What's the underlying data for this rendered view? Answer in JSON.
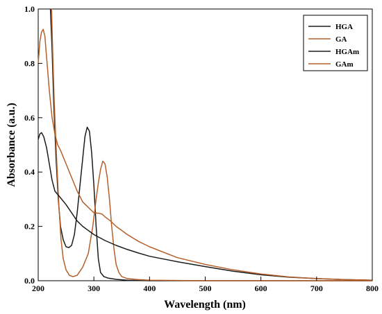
{
  "chart_data": {
    "type": "line",
    "xlabel": "Wavelength (nm)",
    "ylabel": "Absorbance (a.u.)",
    "xlim": [
      200,
      800
    ],
    "ylim": [
      0,
      1.0
    ],
    "grid": false,
    "legend_position": "top-right",
    "x_ticks": [
      {
        "value": 200,
        "label": "200"
      },
      {
        "value": 300,
        "label": "300"
      },
      {
        "value": 400,
        "label": "400"
      },
      {
        "value": 500,
        "label": "500"
      },
      {
        "value": 600,
        "label": "600"
      },
      {
        "value": 700,
        "label": "700"
      },
      {
        "value": 800,
        "label": "800"
      }
    ],
    "y_ticks": [
      {
        "value": 0.0,
        "label": "0.0"
      },
      {
        "value": 0.2,
        "label": "0.2"
      },
      {
        "value": 0.4,
        "label": "0.4"
      },
      {
        "value": 0.6,
        "label": "0.6"
      },
      {
        "value": 0.8,
        "label": "0.8"
      },
      {
        "value": 1.0,
        "label": "1.0"
      }
    ],
    "series": [
      {
        "name": "HGA",
        "color": "#1a1a1a",
        "points": [
          [
            222,
            1.0
          ],
          [
            225,
            0.85
          ],
          [
            228,
            0.65
          ],
          [
            232,
            0.45
          ],
          [
            236,
            0.3
          ],
          [
            240,
            0.2
          ],
          [
            245,
            0.15
          ],
          [
            250,
            0.125
          ],
          [
            255,
            0.122
          ],
          [
            260,
            0.13
          ],
          [
            265,
            0.17
          ],
          [
            270,
            0.25
          ],
          [
            275,
            0.35
          ],
          [
            280,
            0.45
          ],
          [
            284,
            0.53
          ],
          [
            288,
            0.565
          ],
          [
            292,
            0.55
          ],
          [
            296,
            0.47
          ],
          [
            300,
            0.35
          ],
          [
            304,
            0.2
          ],
          [
            308,
            0.08
          ],
          [
            312,
            0.03
          ],
          [
            318,
            0.015
          ],
          [
            325,
            0.01
          ],
          [
            340,
            0.005
          ],
          [
            360,
            0.002
          ],
          [
            400,
            0.0
          ],
          [
            500,
            0.0
          ],
          [
            600,
            0.0
          ],
          [
            700,
            0.0
          ],
          [
            800,
            0.0
          ]
        ]
      },
      {
        "name": "GA",
        "color": "#b5602a",
        "points": [
          [
            224,
            1.0
          ],
          [
            226,
            0.85
          ],
          [
            229,
            0.65
          ],
          [
            233,
            0.45
          ],
          [
            237,
            0.28
          ],
          [
            241,
            0.15
          ],
          [
            245,
            0.08
          ],
          [
            250,
            0.04
          ],
          [
            256,
            0.02
          ],
          [
            262,
            0.015
          ],
          [
            270,
            0.02
          ],
          [
            280,
            0.05
          ],
          [
            290,
            0.1
          ],
          [
            298,
            0.2
          ],
          [
            304,
            0.3
          ],
          [
            308,
            0.36
          ],
          [
            312,
            0.41
          ],
          [
            316,
            0.44
          ],
          [
            320,
            0.43
          ],
          [
            324,
            0.38
          ],
          [
            328,
            0.3
          ],
          [
            332,
            0.2
          ],
          [
            336,
            0.12
          ],
          [
            340,
            0.06
          ],
          [
            345,
            0.03
          ],
          [
            350,
            0.015
          ],
          [
            360,
            0.008
          ],
          [
            380,
            0.004
          ],
          [
            400,
            0.002
          ],
          [
            500,
            0.0
          ],
          [
            600,
            0.0
          ],
          [
            700,
            0.0
          ],
          [
            800,
            0.0
          ]
        ]
      },
      {
        "name": "HGAm",
        "color": "#1a1a1a",
        "points": [
          [
            200,
            0.52
          ],
          [
            203,
            0.54
          ],
          [
            206,
            0.545
          ],
          [
            210,
            0.53
          ],
          [
            215,
            0.49
          ],
          [
            220,
            0.43
          ],
          [
            225,
            0.37
          ],
          [
            230,
            0.33
          ],
          [
            240,
            0.305
          ],
          [
            250,
            0.28
          ],
          [
            260,
            0.25
          ],
          [
            270,
            0.22
          ],
          [
            280,
            0.2
          ],
          [
            300,
            0.17
          ],
          [
            320,
            0.148
          ],
          [
            340,
            0.13
          ],
          [
            360,
            0.115
          ],
          [
            380,
            0.102
          ],
          [
            400,
            0.09
          ],
          [
            450,
            0.07
          ],
          [
            500,
            0.052
          ],
          [
            550,
            0.035
          ],
          [
            600,
            0.022
          ],
          [
            650,
            0.013
          ],
          [
            700,
            0.008
          ],
          [
            750,
            0.004
          ],
          [
            800,
            0.002
          ]
        ]
      },
      {
        "name": "GAm",
        "color": "#b5602a",
        "points": [
          [
            200,
            0.8
          ],
          [
            203,
            0.88
          ],
          [
            206,
            0.915
          ],
          [
            209,
            0.925
          ],
          [
            212,
            0.9
          ],
          [
            216,
            0.8
          ],
          [
            220,
            0.7
          ],
          [
            225,
            0.6
          ],
          [
            230,
            0.54
          ],
          [
            235,
            0.5
          ],
          [
            240,
            0.48
          ],
          [
            250,
            0.43
          ],
          [
            260,
            0.38
          ],
          [
            270,
            0.33
          ],
          [
            280,
            0.29
          ],
          [
            290,
            0.27
          ],
          [
            300,
            0.25
          ],
          [
            310,
            0.248
          ],
          [
            315,
            0.245
          ],
          [
            320,
            0.235
          ],
          [
            330,
            0.22
          ],
          [
            340,
            0.2
          ],
          [
            350,
            0.185
          ],
          [
            360,
            0.17
          ],
          [
            380,
            0.145
          ],
          [
            400,
            0.125
          ],
          [
            450,
            0.085
          ],
          [
            500,
            0.06
          ],
          [
            550,
            0.04
          ],
          [
            600,
            0.025
          ],
          [
            650,
            0.014
          ],
          [
            700,
            0.008
          ],
          [
            750,
            0.004
          ],
          [
            800,
            0.002
          ]
        ]
      }
    ]
  }
}
